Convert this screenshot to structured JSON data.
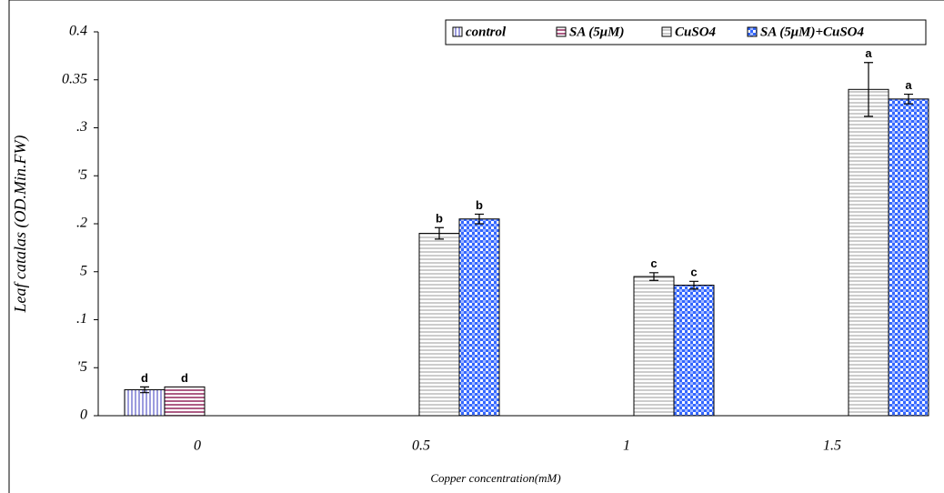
{
  "chart_data": {
    "type": "bar",
    "x_label": "Copper concentration(mM)",
    "y_label": "Leaf catalas (OD.Min.FW)",
    "categories": [
      "0",
      "0.5",
      "1",
      "1.5"
    ],
    "ylim": [
      0,
      0.4
    ],
    "yticks": [
      {
        "value": 0,
        "label": "0"
      },
      {
        "value": 0.05,
        "label": "'5"
      },
      {
        "value": 0.1,
        "label": ".1"
      },
      {
        "value": 0.15,
        "label": "5"
      },
      {
        "value": 0.2,
        "label": ".2"
      },
      {
        "value": 0.25,
        "label": "'5"
      },
      {
        "value": 0.3,
        "label": ".3"
      },
      0.35,
      0.4
    ],
    "series": [
      {
        "name": "control",
        "color": "#6666cc",
        "pattern": "vertical",
        "values": [
          0.027,
          null,
          null,
          null
        ],
        "errors": [
          0.003,
          null,
          null,
          null
        ],
        "letters": [
          "d",
          null,
          null,
          null
        ]
      },
      {
        "name": "SA (5μM)",
        "color": "#993366",
        "pattern": "horizontal",
        "values": [
          0.03,
          null,
          null,
          null
        ],
        "errors": [
          null,
          null,
          null,
          null
        ],
        "letters": [
          "d",
          null,
          null,
          null
        ]
      },
      {
        "name": "CuSO4",
        "color": "#808080",
        "pattern": "horizontal-light",
        "values": [
          null,
          0.19,
          0.145,
          0.34
        ],
        "errors": [
          null,
          0.006,
          0.004,
          0.028
        ],
        "letters": [
          null,
          "b",
          "c",
          "a"
        ]
      },
      {
        "name": "SA (5μM)+CuSO4",
        "color": "#3366ff",
        "pattern": "checker",
        "values": [
          null,
          0.205,
          0.136,
          0.33
        ],
        "errors": [
          null,
          0.005,
          0.004,
          0.005
        ],
        "letters": [
          null,
          "b",
          "c",
          "a"
        ]
      }
    ],
    "legend": "top-right"
  }
}
